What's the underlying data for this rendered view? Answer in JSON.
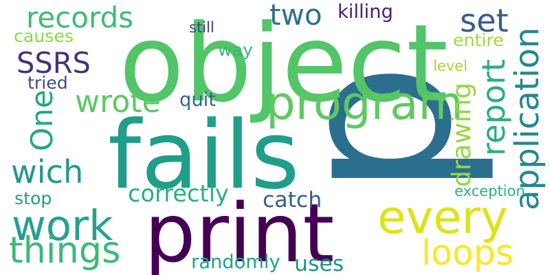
{
  "words": [
    {
      "text": "p",
      "color": "#2c6e8e"
    },
    {
      "text": "object",
      "color": "#52c569"
    },
    {
      "text": "fails",
      "color": "#1f9e89"
    },
    {
      "text": "print",
      "color": "#440154"
    },
    {
      "text": "every",
      "color": "#dde318"
    },
    {
      "text": "program",
      "color": "#5ec962"
    },
    {
      "text": "work",
      "color": "#25a18e"
    },
    {
      "text": "application",
      "color": "#24878e"
    },
    {
      "text": "records",
      "color": "#3dbc74"
    },
    {
      "text": "things",
      "color": "#3aba76"
    },
    {
      "text": "report",
      "color": "#29af7f"
    },
    {
      "text": "loops",
      "color": "#fde725"
    },
    {
      "text": "wich",
      "color": "#1f9a8a"
    },
    {
      "text": "wrote",
      "color": "#5cc863"
    },
    {
      "text": "SSRS",
      "color": "#46327e"
    },
    {
      "text": "set",
      "color": "#365c8d"
    },
    {
      "text": "two",
      "color": "#2d718e"
    },
    {
      "text": "One",
      "color": "#22a785"
    },
    {
      "text": "correctly",
      "color": "#29af7f"
    },
    {
      "text": "drawing",
      "color": "#95d840"
    },
    {
      "text": "uses",
      "color": "#21918c"
    },
    {
      "text": "catch",
      "color": "#365c8d"
    },
    {
      "text": "quit",
      "color": "#33638d"
    },
    {
      "text": "way",
      "color": "#35b779"
    },
    {
      "text": "randomly",
      "color": "#20a386"
    },
    {
      "text": "killing",
      "color": "#482173"
    },
    {
      "text": "causes",
      "color": "#8fd744"
    },
    {
      "text": "tried",
      "color": "#3e4a89"
    },
    {
      "text": "entire",
      "color": "#a0da39"
    },
    {
      "text": "stop",
      "color": "#1e9b8a"
    },
    {
      "text": "exception",
      "color": "#2db27d"
    },
    {
      "text": "still",
      "color": "#443a83"
    },
    {
      "text": "level",
      "color": "#a2da37"
    }
  ]
}
